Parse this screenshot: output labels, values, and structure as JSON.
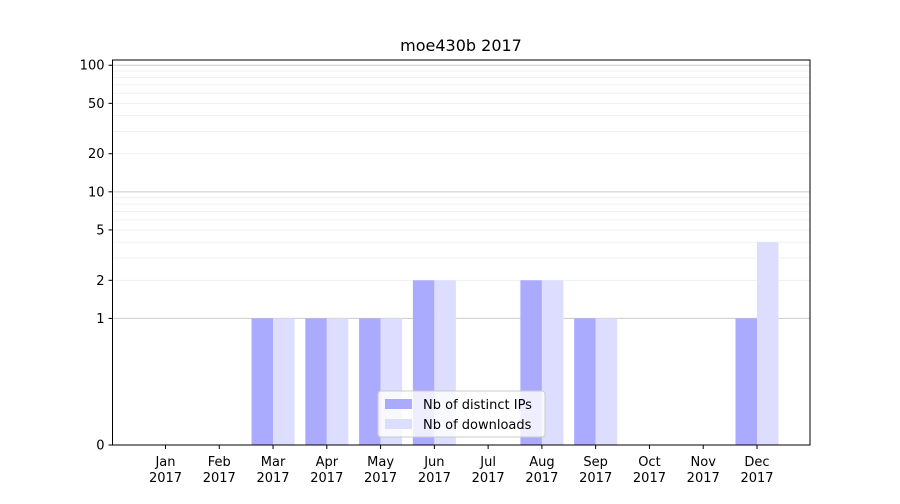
{
  "chart_data": {
    "type": "bar",
    "title": "moe430b 2017",
    "xlabel": "",
    "ylabel": "",
    "y_scale": "symlog",
    "ylim": [
      0,
      110
    ],
    "y_ticks": [
      "0",
      "1",
      "2",
      "5",
      "10",
      "20",
      "50",
      "100"
    ],
    "categories": [
      {
        "month": "Jan",
        "year": "2017"
      },
      {
        "month": "Feb",
        "year": "2017"
      },
      {
        "month": "Mar",
        "year": "2017"
      },
      {
        "month": "Apr",
        "year": "2017"
      },
      {
        "month": "May",
        "year": "2017"
      },
      {
        "month": "Jun",
        "year": "2017"
      },
      {
        "month": "Jul",
        "year": "2017"
      },
      {
        "month": "Aug",
        "year": "2017"
      },
      {
        "month": "Sep",
        "year": "2017"
      },
      {
        "month": "Oct",
        "year": "2017"
      },
      {
        "month": "Nov",
        "year": "2017"
      },
      {
        "month": "Dec",
        "year": "2017"
      }
    ],
    "series": [
      {
        "name": "Nb of distinct IPs",
        "color": "#aaaaff",
        "values": [
          0,
          0,
          1,
          1,
          1,
          2,
          0,
          2,
          1,
          0,
          0,
          1
        ]
      },
      {
        "name": "Nb of downloads",
        "color": "#ddddff",
        "values": [
          0,
          0,
          1,
          1,
          1,
          2,
          0,
          2,
          1,
          0,
          0,
          4
        ]
      }
    ],
    "grid": true,
    "legend_position": "bottom-center"
  }
}
